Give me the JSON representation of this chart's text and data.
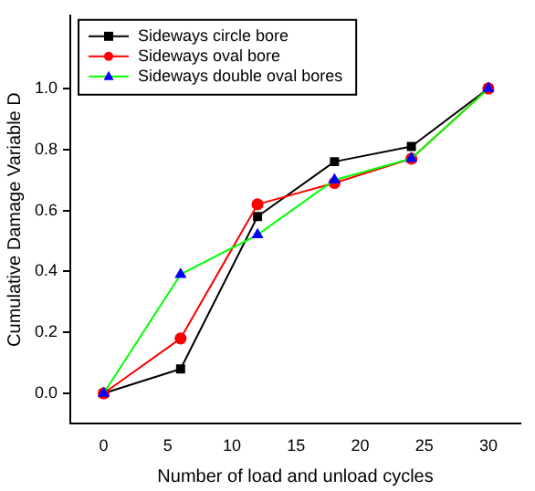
{
  "chart_data": {
    "type": "line",
    "xlabel": "Number of load and unload cycles",
    "ylabel": "Cumulative Damage Variable D",
    "x": [
      0,
      6,
      12,
      18,
      24,
      30
    ],
    "series": [
      {
        "name": "Sideways circle bore",
        "color": "#000000",
        "marker": "square",
        "values": [
          0,
          0.08,
          0.58,
          0.76,
          0.81,
          1.0
        ]
      },
      {
        "name": "Sideways oval bore",
        "color": "#ff0000",
        "marker": "circle",
        "values": [
          0,
          0.18,
          0.62,
          0.69,
          0.77,
          1.0
        ]
      },
      {
        "name": "Sideways double oval bores",
        "color": "#00ff00",
        "colors": [
          "#0000ff",
          "#0000ff",
          "#0000ff",
          "#0000ff",
          "#0000ff",
          "#0000ff"
        ],
        "marker": "triangle",
        "values": [
          0,
          0.39,
          0.52,
          0.7,
          0.77,
          1.0
        ]
      }
    ],
    "xlim": [
      -2.6,
      32.5
    ],
    "xticks": [
      0,
      5,
      10,
      15,
      20,
      25,
      30
    ],
    "ylim": [
      -0.1,
      1.24
    ],
    "yticks": [
      {
        "value": 0,
        "label": "0.0"
      },
      0.2,
      0.4,
      0.6,
      0.8,
      {
        "value": 1,
        "label": "1.0"
      }
    ],
    "grid": false,
    "legend": "top left",
    "line_style": "solid"
  }
}
